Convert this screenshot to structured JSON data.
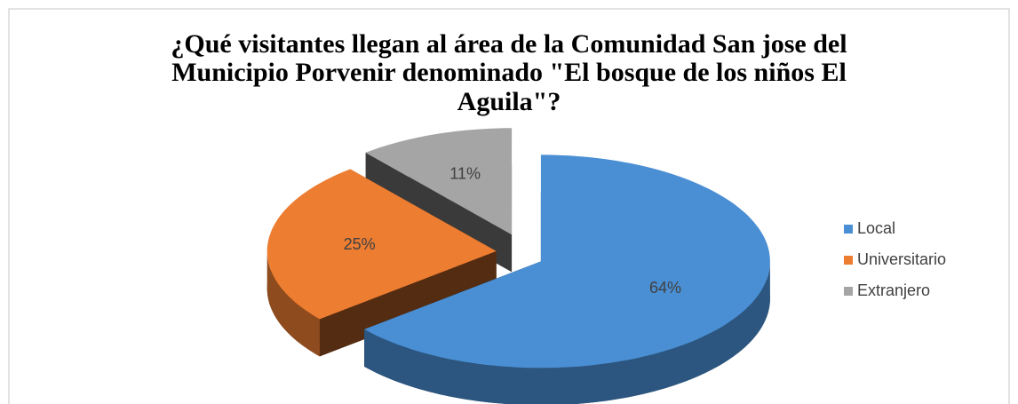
{
  "chart_data": {
    "type": "pie",
    "title": "¿Qué visitantes llegan al área de la Comunidad San jose del Municipio Porvenir denominado \"El bosque de los niños El Aguila\"?",
    "categories": [
      "Local",
      "Universitario",
      "Extranjero"
    ],
    "values": [
      64,
      25,
      11
    ],
    "value_labels": [
      "64%",
      "25%",
      "11%"
    ],
    "colors": [
      "#4a8fd4",
      "#ed7d31",
      "#a5a5a5"
    ],
    "legend": "right"
  }
}
